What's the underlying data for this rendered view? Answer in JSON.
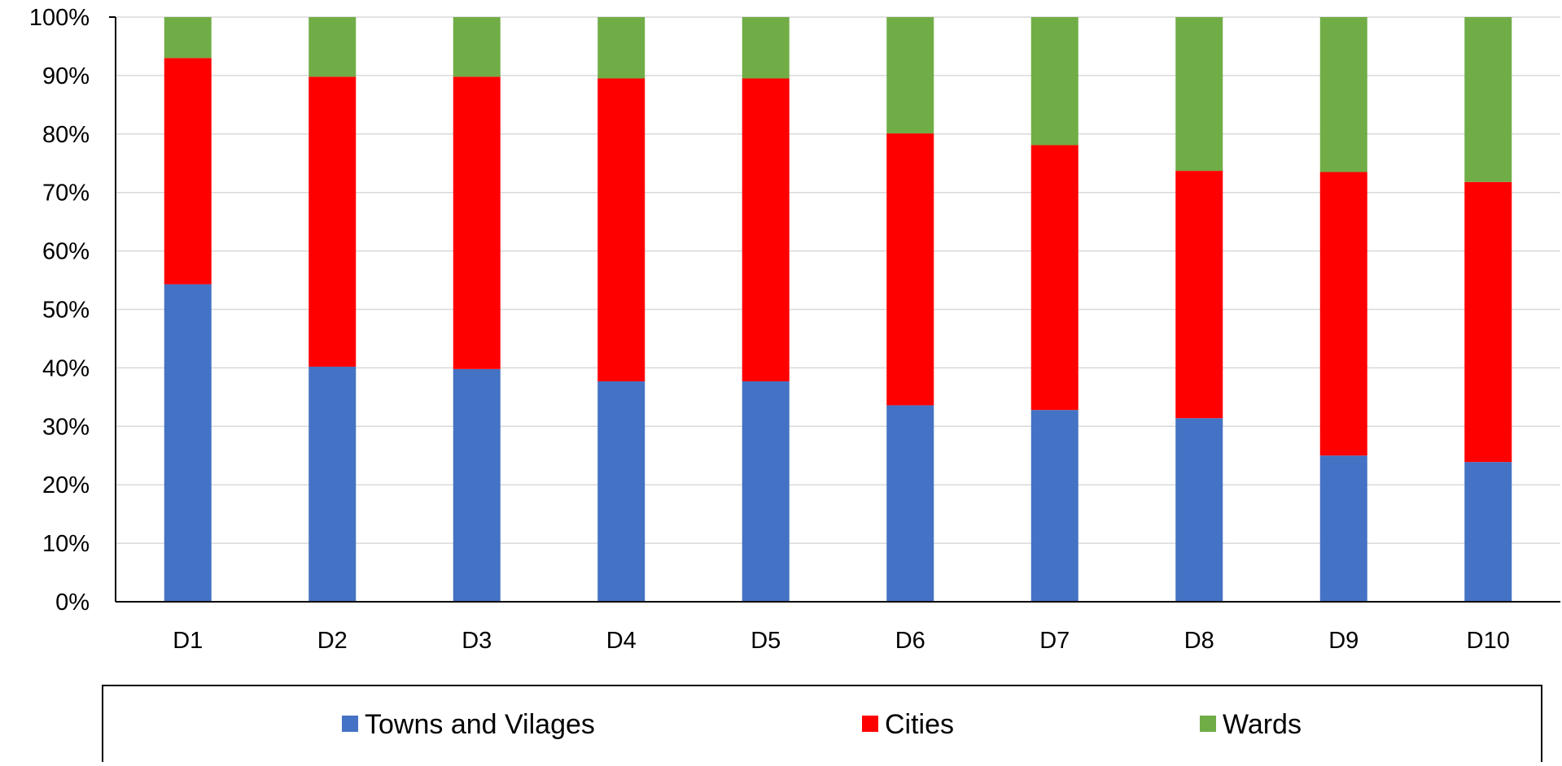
{
  "chart_data": {
    "type": "bar",
    "stacked": "percent",
    "categories": [
      "D1",
      "D2",
      "D3",
      "D4",
      "D5",
      "D6",
      "D7",
      "D8",
      "D9",
      "D10"
    ],
    "series": [
      {
        "name": "Towns and Vilages",
        "color": "#4472c4",
        "values": [
          54.3,
          40.2,
          39.8,
          37.7,
          37.7,
          33.6,
          32.8,
          31.4,
          25.0,
          23.9
        ]
      },
      {
        "name": "Cities",
        "color": "#ff0000",
        "values": [
          38.7,
          49.6,
          50.0,
          51.8,
          51.8,
          46.5,
          45.3,
          42.3,
          48.5,
          47.9
        ]
      },
      {
        "name": "Wards",
        "color": "#70ad47",
        "values": [
          7.0,
          10.2,
          10.2,
          10.5,
          10.5,
          19.9,
          21.9,
          26.3,
          26.5,
          28.2
        ]
      }
    ],
    "title": "",
    "xlabel": "",
    "ylabel": "",
    "ylim": [
      0,
      100
    ],
    "yticks": [
      "0%",
      "10%",
      "20%",
      "30%",
      "40%",
      "50%",
      "60%",
      "70%",
      "80%",
      "90%",
      "100%"
    ],
    "grid": true,
    "legend": "bottom"
  }
}
